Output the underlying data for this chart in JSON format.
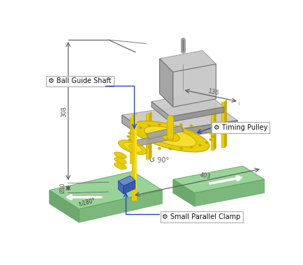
{
  "background_color": "#ffffff",
  "fig_width": 4.34,
  "fig_height": 3.8,
  "dpi": 100,
  "dim_308_text": "308",
  "dim_136_text": "136",
  "dim_403_text": "403",
  "dim_10_text": "Ø10",
  "dim_90_text": "90°",
  "dim_180_text": "↻180°",
  "label_ball_guide": "⚙ Ball Guide Shaft",
  "label_timing": "⚙ Timing Pulley",
  "label_clamp": "⚙ Small Parallel Clamp",
  "colors": {
    "yellow": "#e8cc00",
    "yellow_dark": "#c8aa00",
    "gray_light": "#c8c8c8",
    "gray_mid": "#a0a0a0",
    "gray_dark": "#707070",
    "green_tray": "#88cc88",
    "green_tray_dark": "#66aa66",
    "green_tray_side": "#559955",
    "blue_block": "#4466bb",
    "blue_block_dark": "#223399",
    "white": "#ffffff",
    "dim_line": "#555555",
    "arrow_blue": "#2244cc",
    "label_edge": "#aaaaaa",
    "black": "#000000"
  }
}
